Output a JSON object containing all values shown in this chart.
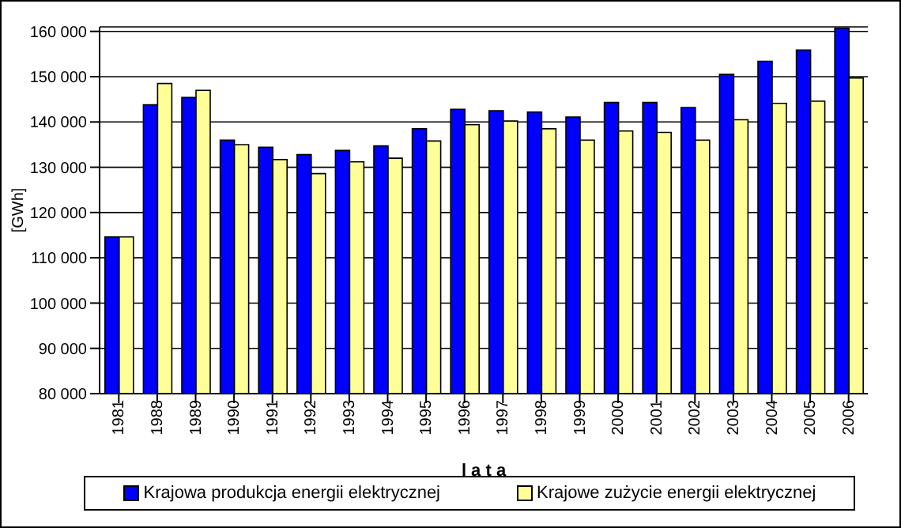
{
  "chart_data": {
    "type": "bar",
    "xlabel": "l a t a",
    "ylabel": "[GWh]",
    "categories": [
      "1981",
      "1988",
      "1989",
      "1990",
      "1991",
      "1992",
      "1993",
      "1994",
      "1995",
      "1996",
      "1997",
      "1998",
      "1999",
      "2000",
      "2001",
      "2002",
      "2003",
      "2004",
      "2005",
      "2006"
    ],
    "series": [
      {
        "name": "Krajowa produkcja energii elektrycznej",
        "color": "#0000ff",
        "values": [
          114600,
          143800,
          145400,
          136000,
          134400,
          132800,
          133700,
          134700,
          138500,
          142800,
          142500,
          142200,
          141100,
          144300,
          144300,
          143200,
          150500,
          153400,
          155900,
          160700
        ]
      },
      {
        "name": "Krajowe zużycie energii elektrycznej",
        "color": "#ffff99",
        "values": [
          114600,
          148500,
          147000,
          135000,
          131700,
          128600,
          131200,
          132000,
          135800,
          139400,
          140200,
          138500,
          136000,
          138000,
          137700,
          136000,
          140500,
          144100,
          144600,
          149700
        ]
      }
    ],
    "ylim": [
      80000,
      161000
    ],
    "yticks": [
      {
        "value": 80000,
        "label": "80 000"
      },
      {
        "value": 90000,
        "label": "90 000"
      },
      {
        "value": 100000,
        "label": "100 000"
      },
      {
        "value": 110000,
        "label": "110 000"
      },
      {
        "value": 120000,
        "label": "120 000"
      },
      {
        "value": 130000,
        "label": "130 000"
      },
      {
        "value": 140000,
        "label": "140 000"
      },
      {
        "value": 150000,
        "label": "150 000"
      },
      {
        "value": 160000,
        "label": "160 000"
      }
    ],
    "grid": "y",
    "legend": "bottom"
  }
}
